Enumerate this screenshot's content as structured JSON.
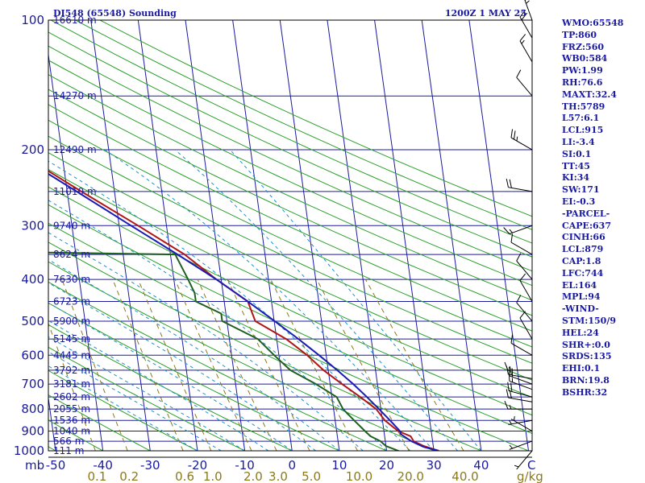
{
  "header": {
    "station": "DI548 (65548) Sounding",
    "time": "1200Z  1 MAY 25"
  },
  "colors": {
    "frame": "#000000",
    "isobar": "#1a1aa0",
    "isotherm": "#1a1aa0",
    "dry_adiabat": "#2aa02a",
    "moist_adiabat": "#1e8fc8",
    "mixing_ratio": "#8a7a1a",
    "temperature": "#b01515",
    "dewpoint": "#1f5f1f",
    "parcel": "#1a1ab4",
    "wind": "#000000",
    "label_blue": "#1a1aa0",
    "label_olive": "#8a7a1a"
  },
  "axes": {
    "p_unit": "mb",
    "t_unit": "C",
    "w_unit": "g/kg",
    "pressure_labels": [
      "100",
      "200",
      "300",
      "400",
      "500",
      "600",
      "700",
      "800",
      "900",
      "1000"
    ],
    "temperature_labels": [
      "-50",
      "-40",
      "-30",
      "-20",
      "-10",
      "0",
      "10",
      "20",
      "30",
      "40"
    ],
    "mixing_ratio_labels": [
      "0.1",
      "0.2",
      "0.6",
      "1.0",
      "2.0",
      "3.0",
      "5.0",
      "10.0",
      "20.0",
      "40.0"
    ]
  },
  "height_labels": [
    "16610 m",
    "14270 m",
    "12490 m",
    "11010 m",
    "9740 m",
    "8624 m",
    "7630 m",
    "6723 m",
    "5900 m",
    "5145 m",
    "4445 m",
    "3792 m",
    "3181 m",
    "2602 m",
    "2055 m",
    "1536 m",
    "1040 m",
    "566 m",
    "111 m"
  ],
  "indices": [
    "WMO:65548",
    "TP:860",
    "FRZ:560",
    "WB0:584",
    "PW:1.99",
    "RH:76.6",
    "MAXT:32.4",
    "TH:5789",
    "L57:6.1",
    "LCL:915",
    "LI:-3.4",
    "SI:0.1",
    "TT:45",
    "KI:34",
    "SW:171",
    "EI:-0.3",
    "-PARCEL-",
    "CAPE:637",
    "CINH:66",
    "LCL:879",
    "CAP:1.8",
    "LFC:744",
    "EL:164",
    "MPL:94",
    "-WIND-",
    "STM:150/9",
    "HEL:24",
    "SHR+:0.0",
    "SRDS:135",
    "EHI:0.1",
    "BRN:19.8",
    "BSHR:32"
  ],
  "chart_data": {
    "type": "line",
    "title": "DI548 (65548) Sounding",
    "subtitle": "1200Z  1 MAY 25",
    "xlabel": "C",
    "ylabel": "mb",
    "plim": [
      1000,
      100
    ],
    "xlim": [
      -50,
      50
    ],
    "ylim": [
      1000,
      100
    ],
    "y_scale": "log-pressure",
    "standard_levels": [
      {
        "p": 100,
        "z": "16610 m"
      },
      {
        "p": 150,
        "z": "14270 m"
      },
      {
        "p": 200,
        "z": "12490 m"
      },
      {
        "p": 250,
        "z": "11010 m"
      },
      {
        "p": 300,
        "z": "9740 m"
      },
      {
        "p": 350,
        "z": "8624 m"
      },
      {
        "p": 400,
        "z": "7630 m"
      },
      {
        "p": 450,
        "z": "6723 m"
      },
      {
        "p": 500,
        "z": "5900 m"
      },
      {
        "p": 550,
        "z": "5145 m"
      },
      {
        "p": 600,
        "z": "4445 m"
      },
      {
        "p": 650,
        "z": "3792 m"
      },
      {
        "p": 700,
        "z": "3181 m"
      },
      {
        "p": 750,
        "z": "2602 m"
      },
      {
        "p": 800,
        "z": "2055 m"
      },
      {
        "p": 850,
        "z": "1536 m"
      },
      {
        "p": 900,
        "z": "1040 m"
      },
      {
        "p": 950,
        "z": "566 m"
      },
      {
        "p": 1000,
        "z": "111 m"
      }
    ],
    "series": [
      {
        "key": "temperature",
        "points": [
          [
            1000,
            31
          ],
          [
            975,
            28
          ],
          [
            950,
            26
          ],
          [
            925,
            25.5
          ],
          [
            900,
            23
          ],
          [
            850,
            20.5
          ],
          [
            800,
            19
          ],
          [
            750,
            16
          ],
          [
            700,
            12.5
          ],
          [
            650,
            9
          ],
          [
            600,
            6
          ],
          [
            550,
            2
          ],
          [
            500,
            -4
          ],
          [
            450,
            -5
          ],
          [
            400,
            -11
          ],
          [
            350,
            -17
          ],
          [
            300,
            -26
          ],
          [
            250,
            -37
          ],
          [
            200,
            -50
          ],
          [
            150,
            -66
          ],
          [
            125,
            -73
          ],
          [
            110,
            -75
          ],
          [
            100,
            -74
          ]
        ]
      },
      {
        "key": "dewpoint",
        "points": [
          [
            1005,
            22
          ],
          [
            1000,
            22.5
          ],
          [
            975,
            20
          ],
          [
            950,
            19
          ],
          [
            925,
            17
          ],
          [
            900,
            16
          ],
          [
            850,
            14
          ],
          [
            800,
            12
          ],
          [
            750,
            11
          ],
          [
            700,
            7
          ],
          [
            650,
            2
          ],
          [
            600,
            -1
          ],
          [
            550,
            -4
          ],
          [
            500,
            -11
          ],
          [
            480,
            -11
          ],
          [
            450,
            -16
          ],
          [
            430,
            -16
          ],
          [
            400,
            -17
          ],
          [
            350,
            -19
          ],
          [
            345,
            -58
          ],
          [
            300,
            -45
          ],
          [
            280,
            -45
          ],
          [
            250,
            -53
          ],
          [
            220,
            -60
          ],
          [
            200,
            -65
          ],
          [
            180,
            -72
          ],
          [
            150,
            -80
          ],
          [
            120,
            -84
          ],
          [
            105,
            -81
          ],
          [
            100,
            -79
          ]
        ]
      },
      {
        "key": "parcel",
        "points": [
          [
            1000,
            31
          ],
          [
            980,
            28
          ],
          [
            950,
            25.5
          ],
          [
            915,
            23.5
          ],
          [
            900,
            23.4
          ],
          [
            850,
            21.6
          ],
          [
            800,
            19.6
          ],
          [
            750,
            17.4
          ],
          [
            700,
            14.9
          ],
          [
            650,
            11.9
          ],
          [
            600,
            8.5
          ],
          [
            550,
            4.6
          ],
          [
            500,
            0.1
          ],
          [
            450,
            -5
          ],
          [
            400,
            -11
          ],
          [
            350,
            -18.5
          ],
          [
            300,
            -27.5
          ],
          [
            250,
            -38
          ],
          [
            200,
            -51
          ],
          [
            164,
            -64
          ],
          [
            140,
            -73
          ],
          [
            125,
            -79
          ]
        ]
      }
    ],
    "wind_barbs": [
      {
        "p": 1000,
        "dir": 220,
        "kt": 5
      },
      {
        "p": 950,
        "dir": 250,
        "kt": 5
      },
      {
        "p": 900,
        "dir": 300,
        "kt": 5
      },
      {
        "p": 850,
        "dir": 260,
        "kt": 5
      },
      {
        "p": 800,
        "dir": 270,
        "kt": 15
      },
      {
        "p": 770,
        "dir": 280,
        "kt": 20
      },
      {
        "p": 750,
        "dir": 285,
        "kt": 20
      },
      {
        "p": 720,
        "dir": 290,
        "kt": 15
      },
      {
        "p": 700,
        "dir": 290,
        "kt": 20
      },
      {
        "p": 680,
        "dir": 280,
        "kt": 15
      },
      {
        "p": 650,
        "dir": 270,
        "kt": 15
      },
      {
        "p": 600,
        "dir": 300,
        "kt": 10
      },
      {
        "p": 550,
        "dir": 330,
        "kt": 10
      },
      {
        "p": 500,
        "dir": 320,
        "kt": 10
      },
      {
        "p": 450,
        "dir": 330,
        "kt": 10
      },
      {
        "p": 400,
        "dir": 320,
        "kt": 10
      },
      {
        "p": 350,
        "dir": 300,
        "kt": 10
      },
      {
        "p": 300,
        "dir": 250,
        "kt": 15
      },
      {
        "p": 250,
        "dir": 280,
        "kt": 20
      },
      {
        "p": 200,
        "dir": 300,
        "kt": 25
      },
      {
        "p": 150,
        "dir": 320,
        "kt": 10
      },
      {
        "p": 125,
        "dir": 330,
        "kt": 15
      },
      {
        "p": 110,
        "dir": 330,
        "kt": 20
      },
      {
        "p": 100,
        "dir": 340,
        "kt": 25
      }
    ]
  }
}
